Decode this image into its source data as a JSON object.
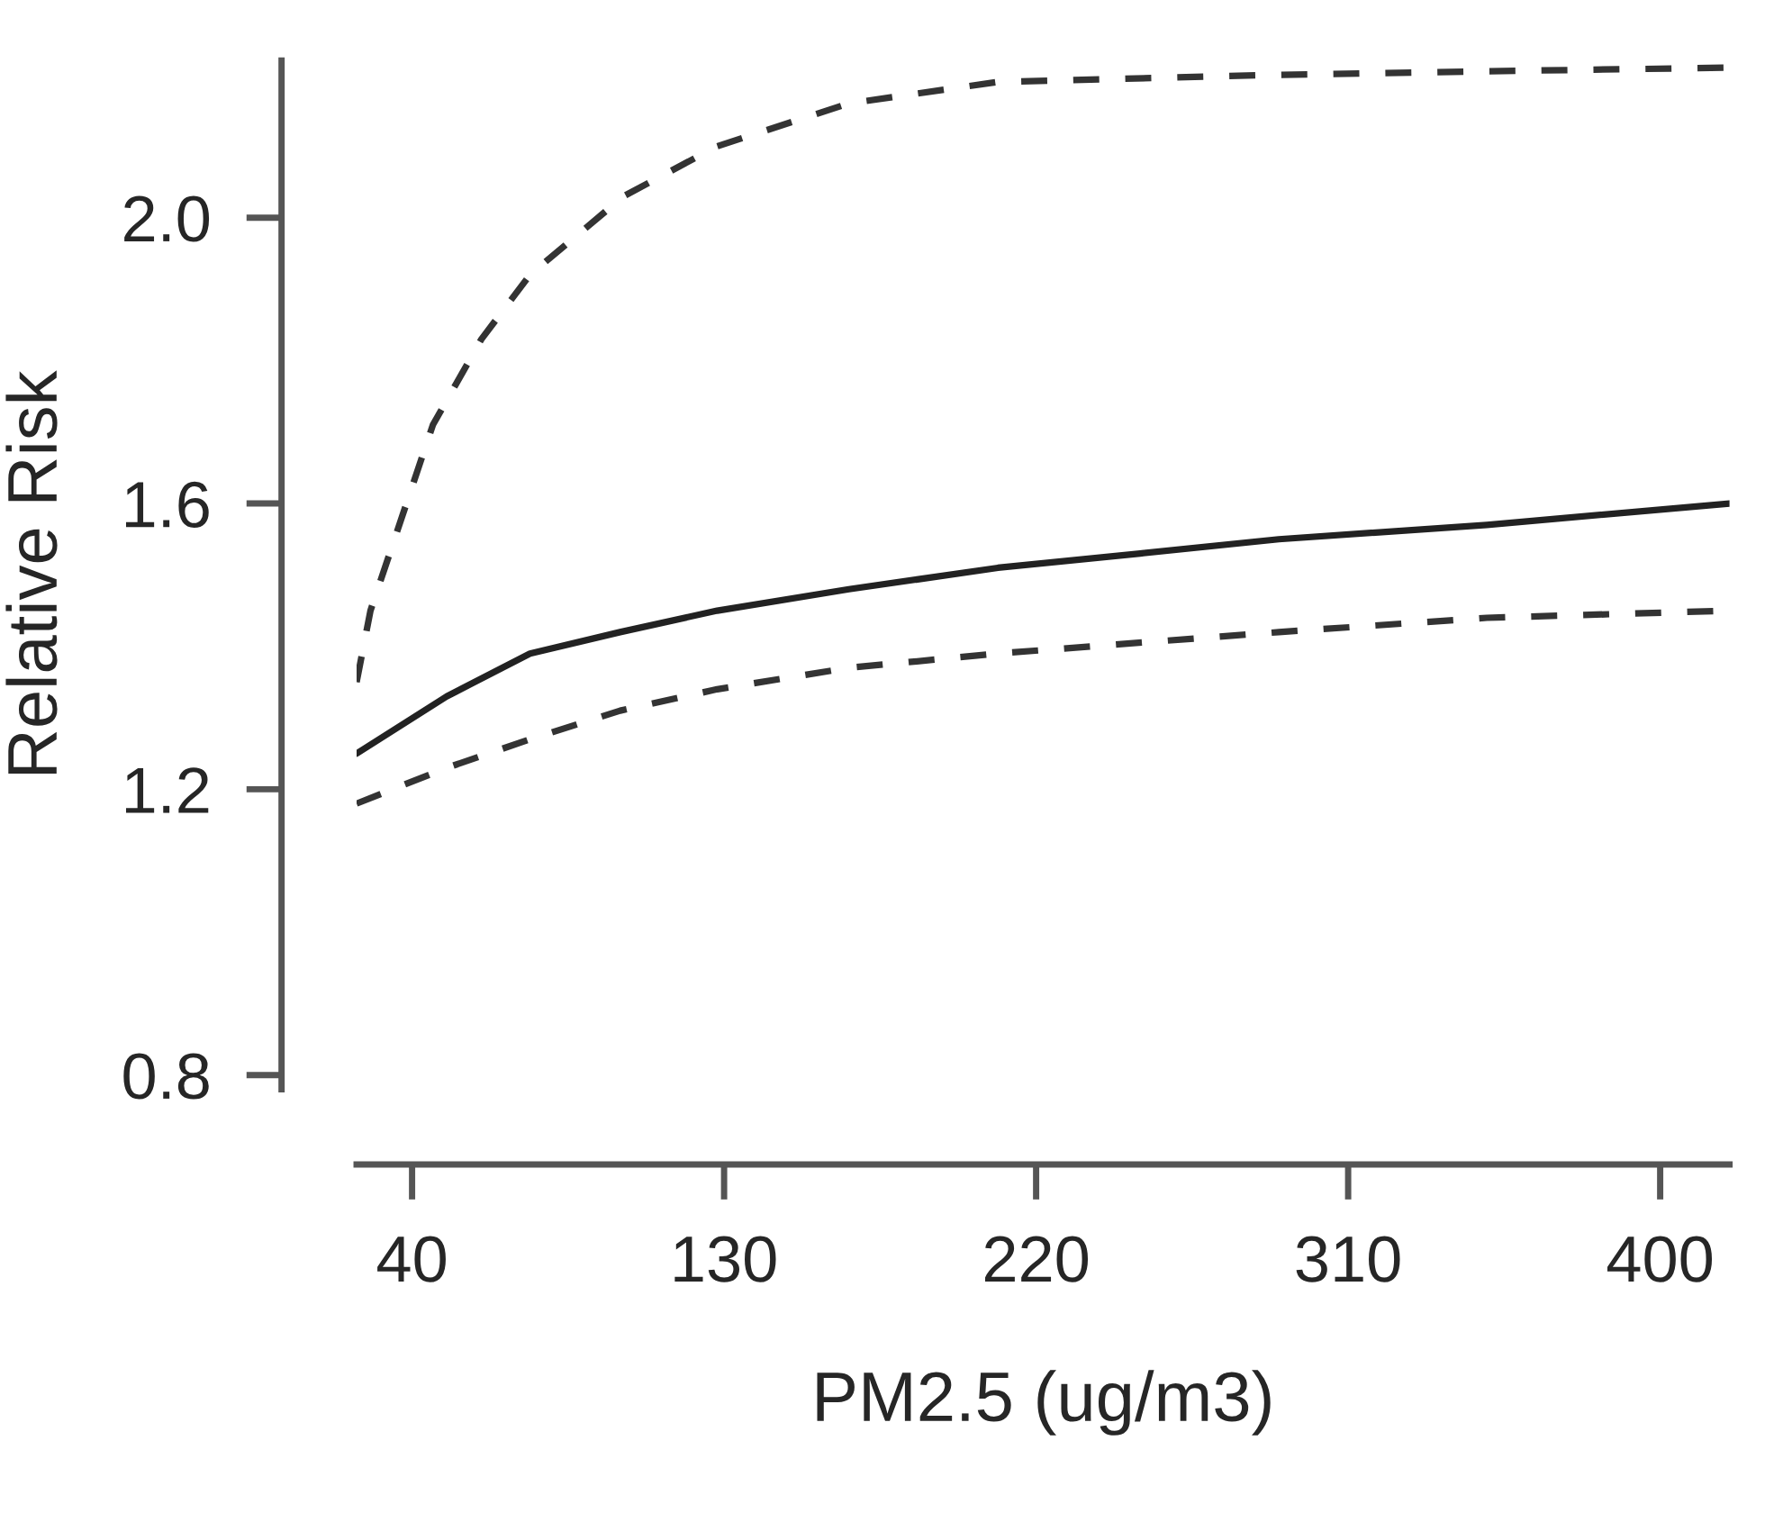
{
  "chart_data": {
    "type": "line",
    "xlabel": "PM2.5 (ug/m3)",
    "ylabel": "Relative Risk",
    "xlim": [
      24,
      420
    ],
    "ylim": [
      0.78,
      2.22
    ],
    "xticks": [
      40,
      130,
      220,
      310,
      400
    ],
    "yticks": [
      {
        "value": 0.8,
        "label": "0.8"
      },
      {
        "value": 1.2,
        "label": "1.2"
      },
      {
        "value": 1.6,
        "label": "1.6"
      },
      {
        "value": 2.0,
        "label": "2.0"
      }
    ],
    "grid": false,
    "legend": false,
    "marker": "none",
    "series": [
      {
        "color": "#222222",
        "line_style": "solid",
        "x": [
          24,
          50,
          74,
          100,
          128,
          166,
          209,
          250,
          290,
          350,
          420
        ],
        "values": [
          1.25,
          1.33,
          1.39,
          1.42,
          1.45,
          1.48,
          1.51,
          1.53,
          1.55,
          1.57,
          1.6
        ]
      },
      {
        "color": "#333333",
        "line_style": "dashed",
        "x": [
          24,
          28,
          46,
          60,
          74,
          101,
          128,
          166,
          209,
          290,
          350,
          420
        ],
        "values": [
          1.35,
          1.45,
          1.71,
          1.83,
          1.92,
          2.03,
          2.1,
          2.16,
          2.19,
          2.2,
          2.205,
          2.21
        ]
      },
      {
        "color": "#333333",
        "line_style": "dashed",
        "x": [
          24,
          50,
          74,
          100,
          128,
          166,
          209,
          290,
          350,
          420
        ],
        "values": [
          1.18,
          1.23,
          1.27,
          1.31,
          1.34,
          1.37,
          1.39,
          1.42,
          1.44,
          1.45
        ]
      }
    ]
  }
}
